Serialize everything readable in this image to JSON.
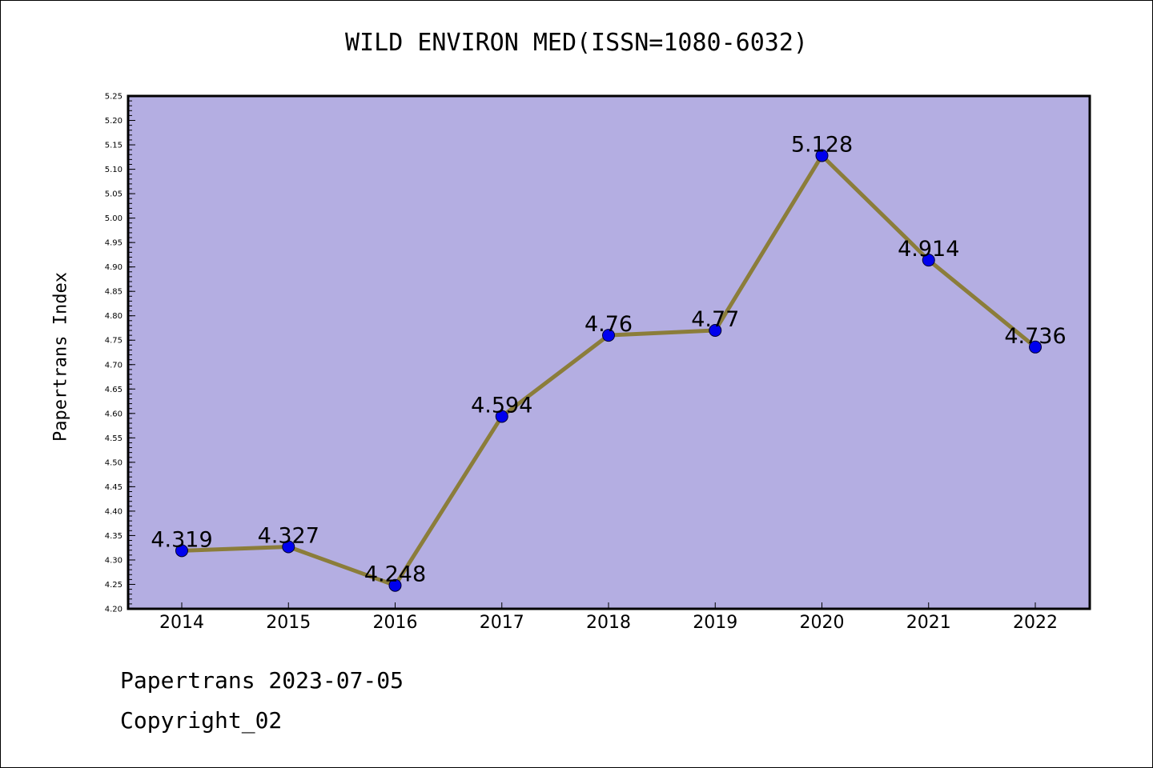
{
  "chart_data": {
    "type": "line",
    "title": "WILD ENVIRON MED(ISSN=1080-6032)",
    "xlabel": "",
    "ylabel": "Papertrans Index",
    "categories": [
      "2014",
      "2015",
      "2016",
      "2017",
      "2018",
      "2019",
      "2020",
      "2021",
      "2022"
    ],
    "series": [
      {
        "values": [
          4.319,
          4.327,
          4.248,
          4.594,
          4.76,
          4.77,
          5.128,
          4.914,
          4.736
        ]
      }
    ],
    "data_labels": [
      "4.319",
      "4.327",
      "4.248",
      "4.594",
      "4.76",
      "4.77",
      "5.128",
      "4.914",
      "4.736"
    ],
    "ylim": [
      4.2,
      5.25
    ],
    "yticks": [
      "4.20",
      "4.25",
      "4.30",
      "4.35",
      "4.40",
      "4.45",
      "4.50",
      "4.55",
      "4.60",
      "4.65",
      "4.70",
      "4.75",
      "4.80",
      "4.85",
      "4.90",
      "4.95",
      "5.00",
      "5.05",
      "5.10",
      "5.15",
      "5.20",
      "5.25"
    ],
    "grid": false,
    "colors": {
      "plot_background": "#b4aee2",
      "line": "#8b7d3a",
      "marker": "#0000ee",
      "axis": "#000000"
    }
  },
  "footer": {
    "line1": "Papertrans 2023-07-05",
    "line2": "Copyright_02"
  }
}
